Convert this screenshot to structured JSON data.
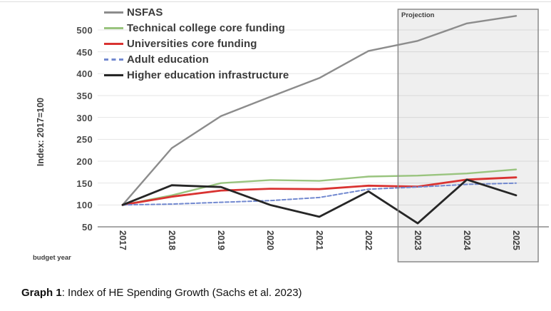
{
  "caption": {
    "prefix": "Graph 1",
    "rest": ": Index of HE Spending Growth (Sachs et al. 2023)"
  },
  "chart_data": {
    "type": "line",
    "x": [
      2017,
      2018,
      2019,
      2020,
      2021,
      2022,
      2023,
      2024,
      2025
    ],
    "xlabel": "budget year",
    "ylabel": "Index: 2017=100",
    "ylim": [
      50,
      550
    ],
    "yticks": [
      50,
      100,
      150,
      200,
      250,
      300,
      350,
      400,
      450,
      500
    ],
    "grid": true,
    "legend_position": "top-left",
    "projection_region": {
      "label": "Projection",
      "x_range": [
        2022.6,
        2025.45
      ]
    },
    "series": [
      {
        "name": "NSFAS",
        "color": "#8c8c8c",
        "style": "solid",
        "width": 2.4,
        "values": [
          100,
          230,
          303,
          347,
          390,
          452,
          475,
          515,
          532
        ]
      },
      {
        "name": "Technical college core funding",
        "color": "#99c47e",
        "style": "solid",
        "width": 2.4,
        "values": [
          100,
          122,
          150,
          157,
          155,
          165,
          167,
          172,
          181
        ]
      },
      {
        "name": "Universities core funding",
        "color": "#d93331",
        "style": "solid",
        "width": 2.8,
        "values": [
          100,
          119,
          133,
          137,
          136,
          144,
          142,
          158,
          163
        ]
      },
      {
        "name": "Adult education",
        "color": "#7289d0",
        "style": "dashed",
        "width": 2,
        "values": [
          100,
          102,
          106,
          110,
          117,
          136,
          141,
          147,
          150
        ]
      },
      {
        "name": "Higher education infrastructure",
        "color": "#262626",
        "style": "solid",
        "width": 2.8,
        "values": [
          100,
          145,
          141,
          100,
          73,
          131,
          58,
          158,
          122
        ]
      }
    ]
  },
  "colors": {
    "projection_fill": "rgba(128,128,128,0.13)",
    "projection_border": "#8a8a8a",
    "axis_line": "#a8a8a8",
    "gridline": "#e5e5e5"
  }
}
